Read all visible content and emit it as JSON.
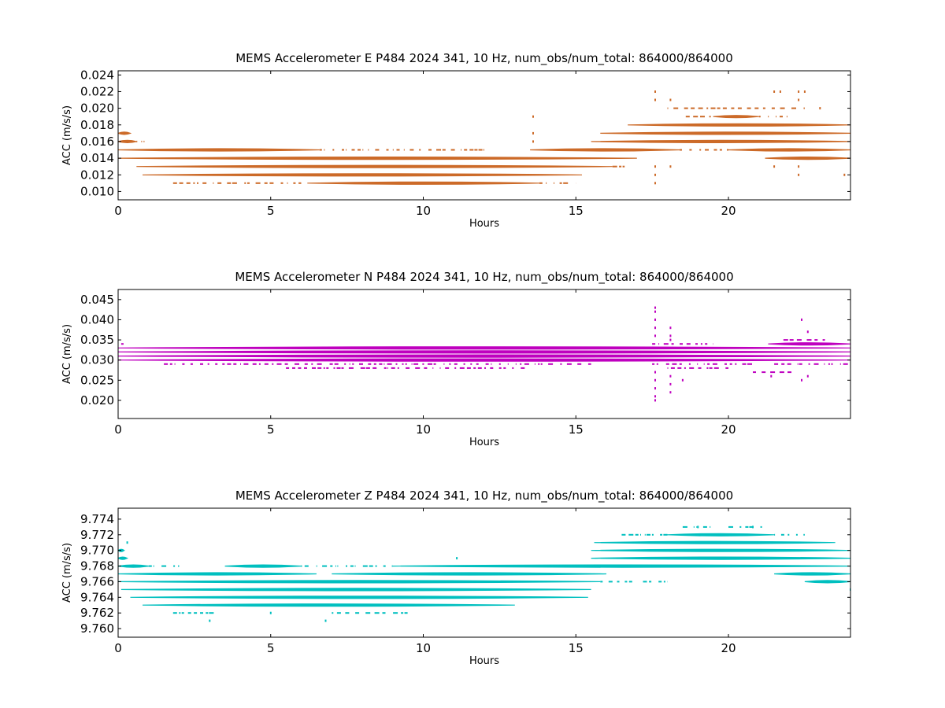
{
  "chart_data": [
    {
      "type": "scatter",
      "title": "MEMS Accelerometer E P484 2024 341, 10 Hz, num_obs/num_total: 864000/864000",
      "xlabel": "Hours",
      "ylabel": "ACC (m/s/s)",
      "xlim": [
        0,
        24
      ],
      "ylim": [
        0.009,
        0.0245
      ],
      "xticks": [
        "0",
        "5",
        "10",
        "15",
        "20"
      ],
      "yticks": [
        "0.010",
        "0.012",
        "0.014",
        "0.016",
        "0.018",
        "0.020",
        "0.022",
        "0.024"
      ],
      "color": "#cc6a28",
      "bands": [
        {
          "y": 0.012,
          "x": [
            [
              0.8,
              15.2
            ]
          ]
        },
        {
          "y": 0.013,
          "x": [
            [
              0.6,
              16.2
            ]
          ]
        },
        {
          "y": 0.014,
          "x": [
            [
              0.0,
              17.0
            ],
            [
              21.2,
              24.0
            ]
          ]
        },
        {
          "y": 0.015,
          "x": [
            [
              0.0,
              6.6
            ],
            [
              13.5,
              18.4
            ],
            [
              20.0,
              24.0
            ]
          ]
        },
        {
          "y": 0.016,
          "x": [
            [
              0.0,
              0.6
            ],
            [
              15.5,
              24.0
            ]
          ]
        },
        {
          "y": 0.017,
          "x": [
            [
              0.0,
              0.4
            ],
            [
              15.8,
              24.0
            ]
          ]
        },
        {
          "y": 0.018,
          "x": [
            [
              16.7,
              24.0
            ]
          ]
        },
        {
          "y": 0.019,
          "x": [
            [
              19.5,
              21.0
            ]
          ]
        },
        {
          "y": 0.011,
          "x": [
            [
              6.2,
              13.8
            ]
          ]
        }
      ],
      "sparse": [
        {
          "y": 0.011,
          "x": [
            [
              1.8,
              6.0
            ],
            [
              13.8,
              15.0
            ]
          ]
        },
        {
          "y": 0.015,
          "x": [
            [
              6.6,
              12.0
            ],
            [
              18.4,
              20.0
            ]
          ]
        },
        {
          "y": 0.019,
          "x": [
            [
              18.6,
              19.5
            ],
            [
              21.0,
              22.0
            ]
          ]
        },
        {
          "y": 0.02,
          "x": [
            [
              18.0,
              22.5
            ]
          ]
        },
        {
          "y": 0.016,
          "x": [
            [
              0.6,
              1.0
            ]
          ]
        },
        {
          "y": 0.013,
          "x": [
            [
              16.2,
              16.6
            ]
          ]
        }
      ],
      "outliers": [
        {
          "x": 13.6,
          "y": 0.019
        },
        {
          "x": 13.6,
          "y": 0.017
        },
        {
          "x": 13.6,
          "y": 0.016
        },
        {
          "x": 17.6,
          "y": 0.022
        },
        {
          "x": 17.6,
          "y": 0.021
        },
        {
          "x": 17.6,
          "y": 0.013
        },
        {
          "x": 17.6,
          "y": 0.012
        },
        {
          "x": 17.6,
          "y": 0.011
        },
        {
          "x": 18.1,
          "y": 0.021
        },
        {
          "x": 18.1,
          "y": 0.013
        },
        {
          "x": 21.5,
          "y": 0.022
        },
        {
          "x": 21.5,
          "y": 0.013
        },
        {
          "x": 21.7,
          "y": 0.022
        },
        {
          "x": 22.3,
          "y": 0.022
        },
        {
          "x": 22.3,
          "y": 0.021
        },
        {
          "x": 22.3,
          "y": 0.013
        },
        {
          "x": 22.3,
          "y": 0.012
        },
        {
          "x": 22.5,
          "y": 0.022
        },
        {
          "x": 23.0,
          "y": 0.02
        },
        {
          "x": 23.8,
          "y": 0.012
        }
      ]
    },
    {
      "type": "scatter",
      "title": "MEMS Accelerometer N P484 2024 341, 10 Hz, num_obs/num_total: 864000/864000",
      "xlabel": "Hours",
      "ylabel": "ACC (m/s/s)",
      "xlim": [
        0,
        24
      ],
      "ylim": [
        0.0155,
        0.0475
      ],
      "xticks": [
        "0",
        "5",
        "10",
        "15",
        "20"
      ],
      "yticks": [
        "0.020",
        "0.025",
        "0.030",
        "0.035",
        "0.040",
        "0.045"
      ],
      "color": "#bf00bf",
      "bands": [
        {
          "y": 0.03,
          "x": [
            [
              0.0,
              24.0
            ]
          ]
        },
        {
          "y": 0.031,
          "x": [
            [
              0.0,
              24.0
            ]
          ]
        },
        {
          "y": 0.032,
          "x": [
            [
              0.0,
              24.0
            ]
          ]
        },
        {
          "y": 0.033,
          "x": [
            [
              0.0,
              24.0
            ]
          ]
        },
        {
          "y": 0.034,
          "x": [
            [
              21.3,
              24.0
            ]
          ]
        }
      ],
      "sparse": [
        {
          "y": 0.029,
          "x": [
            [
              1.5,
              15.5
            ],
            [
              17.5,
              21.0
            ],
            [
              21.5,
              24.0
            ]
          ]
        },
        {
          "y": 0.028,
          "x": [
            [
              5.5,
              13.5
            ],
            [
              18.0,
              20.0
            ]
          ]
        },
        {
          "y": 0.034,
          "x": [
            [
              0.1,
              0.3
            ],
            [
              17.5,
              19.5
            ]
          ]
        },
        {
          "y": 0.035,
          "x": [
            [
              21.8,
              23.2
            ]
          ]
        },
        {
          "y": 0.027,
          "x": [
            [
              20.8,
              22.2
            ]
          ]
        }
      ],
      "outliers": [
        {
          "x": 17.6,
          "y": 0.043
        },
        {
          "x": 17.6,
          "y": 0.042
        },
        {
          "x": 17.6,
          "y": 0.04
        },
        {
          "x": 17.6,
          "y": 0.038
        },
        {
          "x": 17.6,
          "y": 0.036
        },
        {
          "x": 17.6,
          "y": 0.027
        },
        {
          "x": 17.6,
          "y": 0.025
        },
        {
          "x": 17.6,
          "y": 0.023
        },
        {
          "x": 17.6,
          "y": 0.021
        },
        {
          "x": 17.6,
          "y": 0.02
        },
        {
          "x": 18.1,
          "y": 0.038
        },
        {
          "x": 18.1,
          "y": 0.036
        },
        {
          "x": 18.1,
          "y": 0.035
        },
        {
          "x": 18.1,
          "y": 0.026
        },
        {
          "x": 18.1,
          "y": 0.024
        },
        {
          "x": 18.1,
          "y": 0.022
        },
        {
          "x": 18.5,
          "y": 0.025
        },
        {
          "x": 21.4,
          "y": 0.026
        },
        {
          "x": 22.4,
          "y": 0.04
        },
        {
          "x": 22.4,
          "y": 0.025
        },
        {
          "x": 22.6,
          "y": 0.037
        },
        {
          "x": 22.6,
          "y": 0.026
        }
      ]
    },
    {
      "type": "scatter",
      "title": "MEMS Accelerometer Z P484 2024 341, 10 Hz, num_obs/num_total: 864000/864000",
      "xlabel": "Hours",
      "ylabel": "ACC (m/s/s)",
      "xlim": [
        0,
        24
      ],
      "ylim": [
        9.7589,
        9.7754
      ],
      "xticks": [
        "0",
        "5",
        "10",
        "15",
        "20"
      ],
      "yticks": [
        "9.760",
        "9.762",
        "9.764",
        "9.766",
        "9.768",
        "9.770",
        "9.772",
        "9.774"
      ],
      "color": "#00bfbf",
      "bands": [
        {
          "y": 9.763,
          "x": [
            [
              0.8,
              13.0
            ]
          ]
        },
        {
          "y": 9.764,
          "x": [
            [
              0.4,
              15.4
            ]
          ]
        },
        {
          "y": 9.765,
          "x": [
            [
              0.1,
              15.5
            ]
          ]
        },
        {
          "y": 9.766,
          "x": [
            [
              0.0,
              15.8
            ],
            [
              22.5,
              24.0
            ]
          ]
        },
        {
          "y": 9.767,
          "x": [
            [
              0.0,
              6.5
            ],
            [
              7.0,
              16.0
            ],
            [
              21.5,
              24.0
            ]
          ]
        },
        {
          "y": 9.768,
          "x": [
            [
              0.0,
              1.0
            ],
            [
              3.5,
              6.0
            ],
            [
              9.0,
              24.0
            ]
          ]
        },
        {
          "y": 9.769,
          "x": [
            [
              0.0,
              0.3
            ],
            [
              15.5,
              24.0
            ]
          ]
        },
        {
          "y": 9.77,
          "x": [
            [
              0.0,
              0.2
            ],
            [
              15.5,
              24.0
            ]
          ]
        },
        {
          "y": 9.771,
          "x": [
            [
              15.6,
              23.5
            ]
          ]
        },
        {
          "y": 9.772,
          "x": [
            [
              18.0,
              21.5
            ]
          ]
        }
      ],
      "sparse": [
        {
          "y": 9.762,
          "x": [
            [
              1.8,
              3.2
            ],
            [
              7.0,
              9.5
            ]
          ]
        },
        {
          "y": 9.768,
          "x": [
            [
              1.0,
              2.0
            ],
            [
              6.0,
              9.0
            ]
          ]
        },
        {
          "y": 9.772,
          "x": [
            [
              16.5,
              18.0
            ],
            [
              21.5,
              22.5
            ]
          ]
        },
        {
          "y": 9.773,
          "x": [
            [
              18.5,
              19.5
            ],
            [
              20.0,
              21.3
            ]
          ]
        },
        {
          "y": 9.766,
          "x": [
            [
              15.8,
              17.0
            ],
            [
              17.2,
              18.0
            ]
          ]
        }
      ],
      "outliers": [
        {
          "x": 3.0,
          "y": 9.761
        },
        {
          "x": 6.8,
          "y": 9.761
        },
        {
          "x": 5.0,
          "y": 9.762
        },
        {
          "x": 11.1,
          "y": 9.769
        },
        {
          "x": 19.0,
          "y": 9.773
        },
        {
          "x": 20.8,
          "y": 9.773
        },
        {
          "x": 0.3,
          "y": 9.771
        },
        {
          "x": 24.0,
          "y": 9.765
        }
      ]
    }
  ]
}
